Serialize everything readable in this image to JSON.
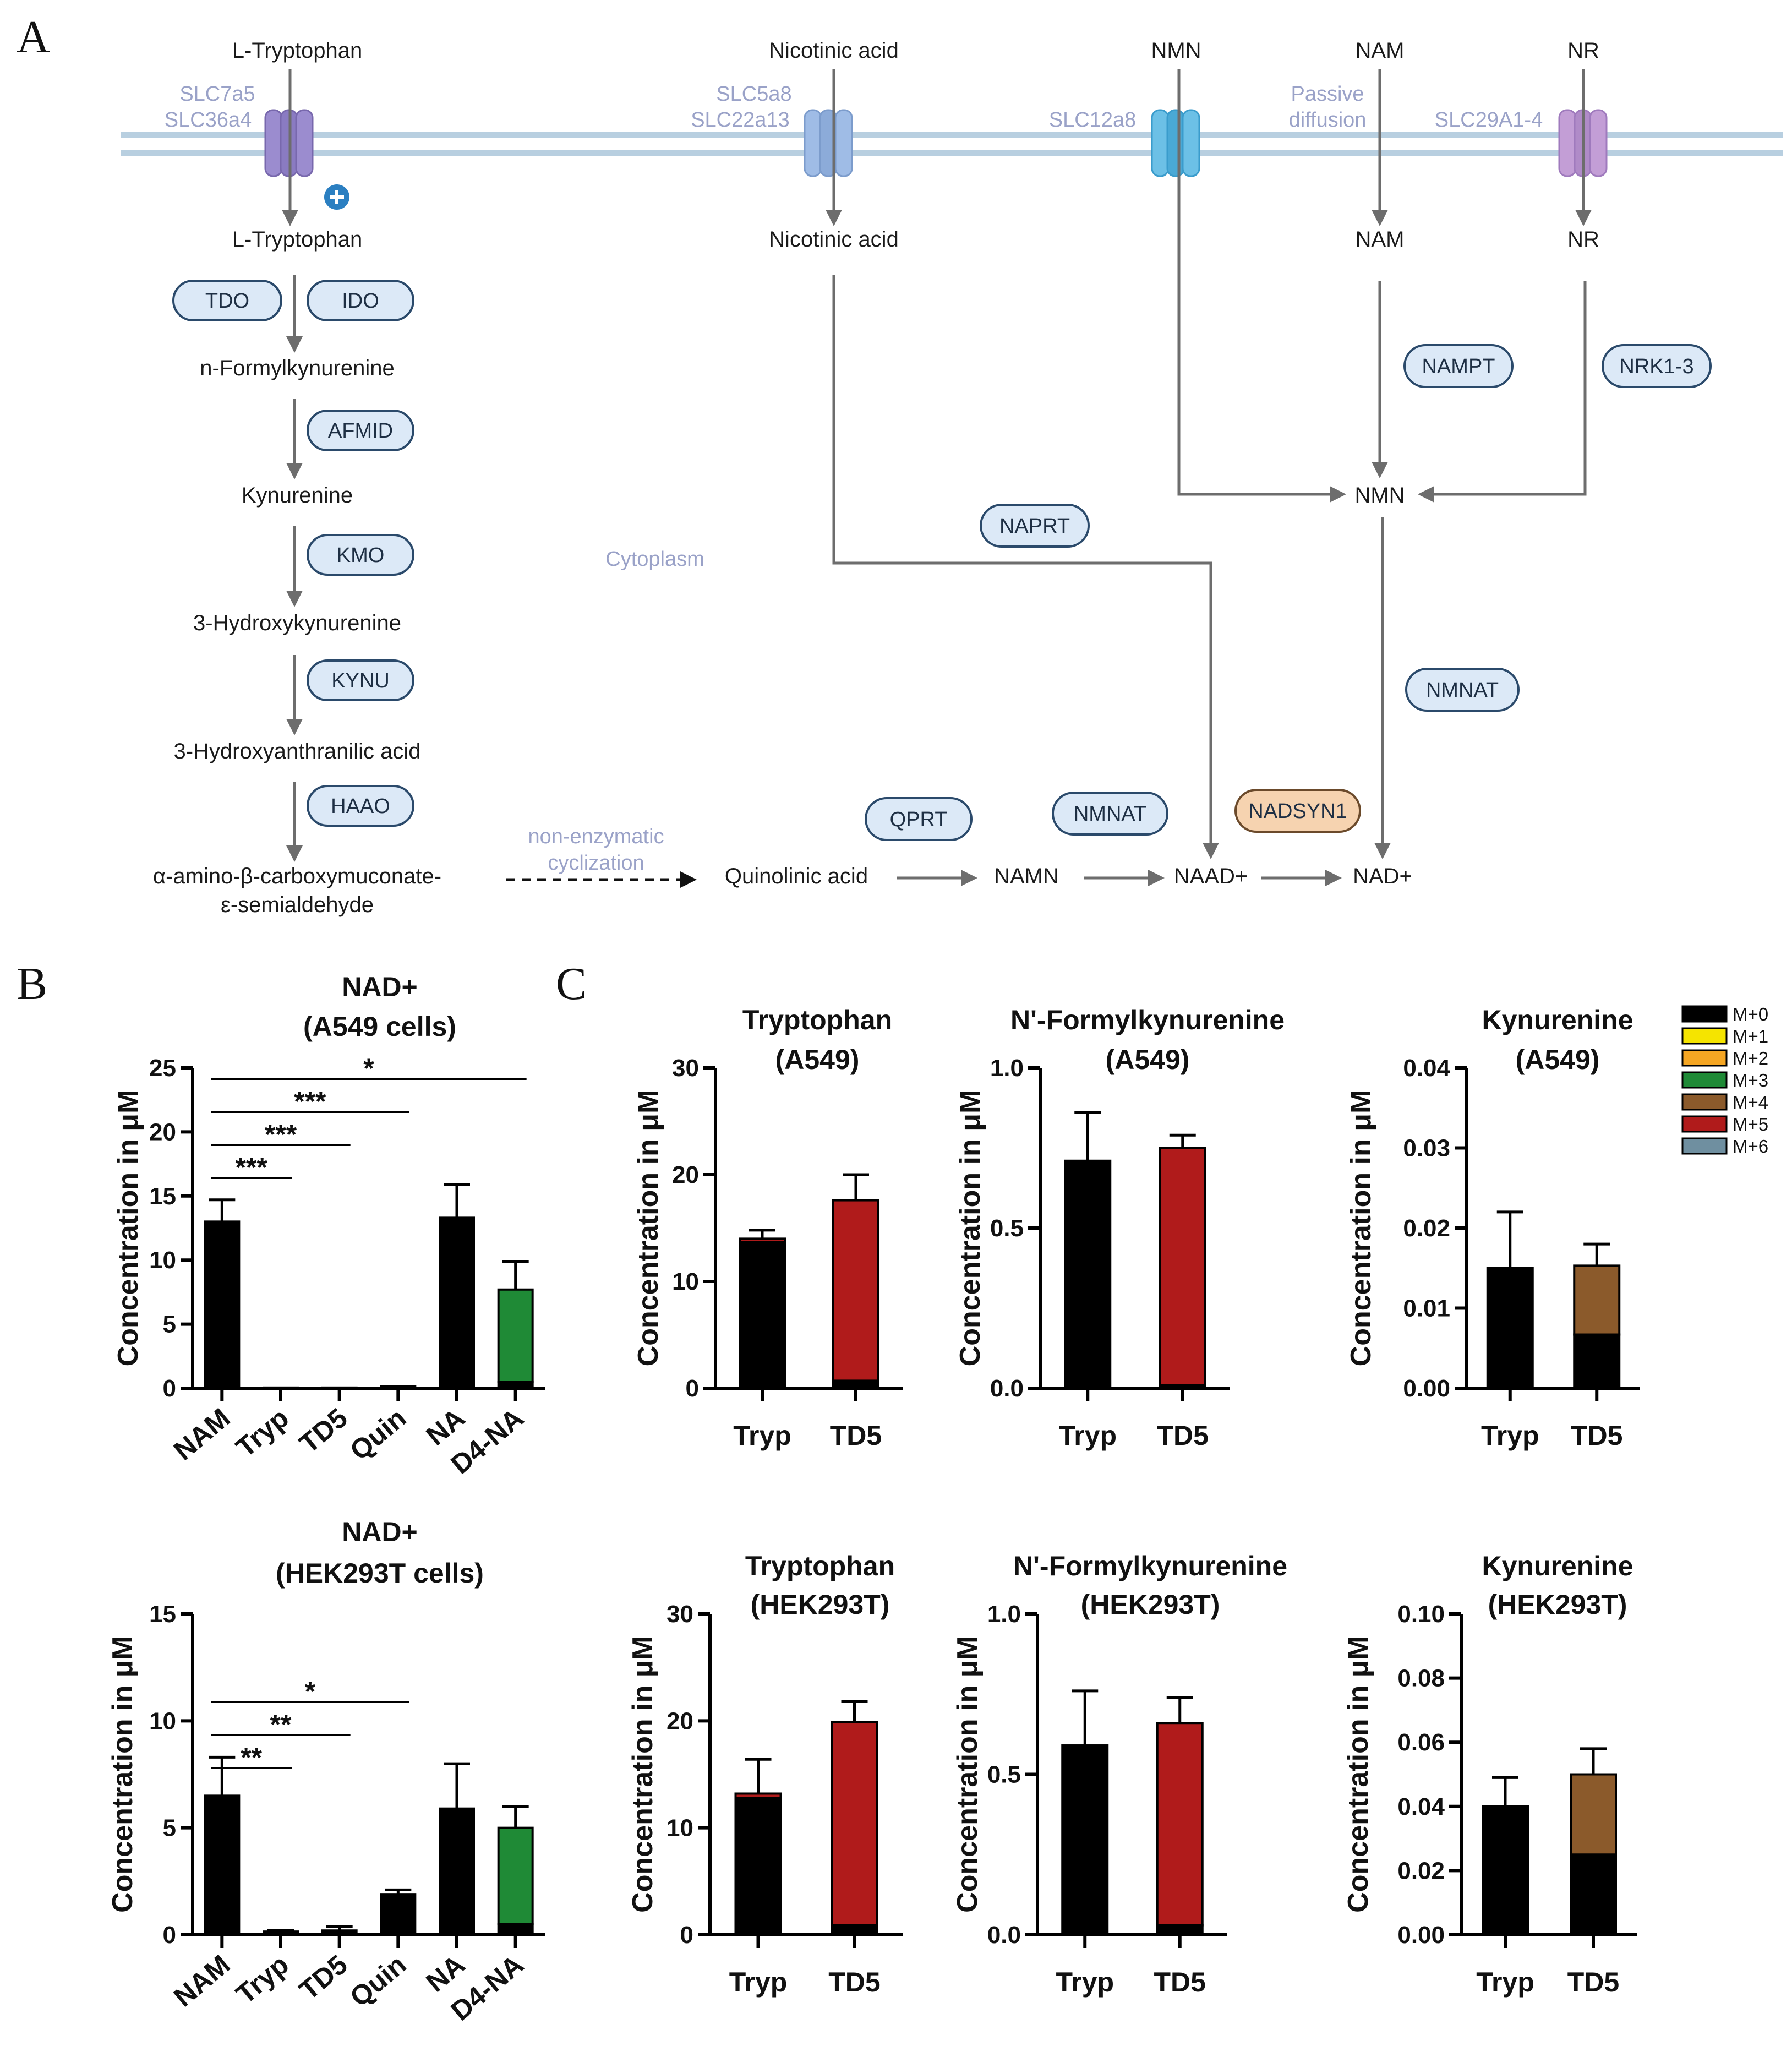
{
  "panels": {
    "a": "A",
    "b": "B",
    "c": "C"
  },
  "pathway": {
    "metabolites": {
      "trp_out": "L-Tryptophan",
      "na_out": "Nicotinic acid",
      "nmn_out": "NMN",
      "nam_out": "NAM",
      "nr_out": "NR",
      "trp_in": "L-Tryptophan",
      "na_in": "Nicotinic acid",
      "nam_in": "NAM",
      "nr_in": "NR",
      "nfk": "n-Formylkynurenine",
      "kyn": "Kynurenine",
      "hk": "3-Hydroxykynurenine",
      "haa": "3-Hydroxyanthranilic acid",
      "acms1": "α-amino-β-carboxymuconate-",
      "acms2": "ε-semialdehyde",
      "quin": "Quinolinic acid",
      "namn": "NAMN",
      "naad": "NAAD+",
      "nad": "NAD+",
      "nmn_in": "NMN"
    },
    "transporters": {
      "slc7a5": "SLC7a5",
      "slc36a4": "SLC36a4",
      "slc5a8": "SLC5a8",
      "slc22a13": "SLC22a13",
      "slc12a8": "SLC12a8",
      "passive1": "Passive",
      "passive2": "diffusion",
      "slc29": "SLC29A1-4"
    },
    "enzymes": {
      "tdo": "TDO",
      "ido": "IDO",
      "afmid": "AFMID",
      "kmo": "KMO",
      "kynu": "KYNU",
      "haao": "HAAO",
      "qprt": "QPRT",
      "nmnat1": "NMNAT",
      "nadsyn1": "NADSYN1",
      "naprt": "NAPRT",
      "nampt": "NAMPT",
      "nrk": "NRK1-3",
      "nmnat2": "NMNAT"
    },
    "cytoplasm": "Cytoplasm",
    "nonenz1": "non-enzymatic",
    "nonenz2": "cyclization",
    "plus_icon": "plus-circle-icon",
    "colors": {
      "membrane": "#b8cfe0",
      "slc7": "#9b8ccf",
      "slc5": "#9fbce6",
      "slc12": "#6cc0e6",
      "slc29": "#c39ed6"
    }
  },
  "legend": {
    "items": [
      {
        "label": "M+0",
        "color": "#000000"
      },
      {
        "label": "M+1",
        "color": "#f5e400"
      },
      {
        "label": "M+2",
        "color": "#f5a623"
      },
      {
        "label": "M+3",
        "color": "#1f8a36"
      },
      {
        "label": "M+4",
        "color": "#8b5a2b"
      },
      {
        "label": "M+5",
        "color": "#b01b1b"
      },
      {
        "label": "M+6",
        "color": "#6f8fa0"
      }
    ]
  },
  "chart_data": [
    {
      "id": "b1",
      "type": "bar",
      "title": "NAD+",
      "subtitle": "(A549 cells)",
      "ylabel": "Concentration in  μM",
      "ylim": [
        0,
        25
      ],
      "yticks": [
        0,
        5,
        10,
        15,
        20,
        25
      ],
      "tick_labels": [
        "0",
        "5",
        "10",
        "15",
        "20",
        "25"
      ],
      "categories": [
        "NAM",
        "Tryp",
        "TD5",
        "Quin",
        "NA",
        "D4-NA"
      ],
      "series": [
        {
          "name": "M+0",
          "values": [
            13.0,
            0.05,
            0.05,
            0.15,
            13.3,
            0.5
          ]
        },
        {
          "name": "M+3",
          "values": [
            0,
            0,
            0,
            0,
            0,
            7.2
          ]
        }
      ],
      "error_top": [
        14.7,
        0.05,
        0.05,
        0.15,
        15.9,
        9.9
      ],
      "significance": [
        {
          "from": "NAM",
          "to": "Tryp",
          "label": "***"
        },
        {
          "from": "NAM",
          "to": "TD5",
          "label": "***"
        },
        {
          "from": "NAM",
          "to": "Quin",
          "label": "***"
        },
        {
          "from": "NAM",
          "to": "D4-NA",
          "label": "*"
        }
      ]
    },
    {
      "id": "b2",
      "type": "bar",
      "title": "NAD+",
      "subtitle": "(HEK293T cells)",
      "ylabel": "Concentration in  μM",
      "ylim": [
        0,
        15
      ],
      "yticks": [
        0,
        5,
        10,
        15
      ],
      "tick_labels": [
        "0",
        "5",
        "10",
        "15"
      ],
      "categories": [
        "NAM",
        "Tryp",
        "TD5",
        "Quin",
        "NA",
        "D4-NA"
      ],
      "series": [
        {
          "name": "M+0",
          "values": [
            6.5,
            0.15,
            0.2,
            1.9,
            5.9,
            0.5
          ]
        },
        {
          "name": "M+3",
          "values": [
            0,
            0,
            0,
            0,
            0,
            4.5
          ]
        }
      ],
      "error_top": [
        8.3,
        0.2,
        0.4,
        2.1,
        8.0,
        6.0
      ],
      "significance": [
        {
          "from": "NAM",
          "to": "Tryp",
          "label": "**"
        },
        {
          "from": "NAM",
          "to": "TD5",
          "label": "**"
        },
        {
          "from": "NAM",
          "to": "Quin",
          "label": "*"
        }
      ]
    },
    {
      "id": "c1",
      "type": "bar",
      "title": "Tryptophan",
      "subtitle": "(A549)",
      "ylabel": "Concentration in  μM",
      "ylim": [
        0,
        30
      ],
      "yticks": [
        0,
        10,
        20,
        30
      ],
      "tick_labels": [
        "0",
        "10",
        "20",
        "30"
      ],
      "categories": [
        "Tryp",
        "TD5"
      ],
      "series": [
        {
          "name": "M+0",
          "values": [
            13.7,
            0.7
          ]
        },
        {
          "name": "M+5",
          "values": [
            0.3,
            16.9
          ]
        }
      ],
      "error_top": [
        14.8,
        20.0
      ]
    },
    {
      "id": "c2",
      "type": "bar",
      "title": "N'-Formylkynurenine",
      "subtitle": "(A549)",
      "ylabel": "Concentration in  μM",
      "ylim": [
        0,
        1.0
      ],
      "yticks": [
        0,
        0.5,
        1.0
      ],
      "tick_labels": [
        "0.0",
        "0.5",
        "1.0"
      ],
      "categories": [
        "Tryp",
        "TD5"
      ],
      "series": [
        {
          "name": "M+0",
          "values": [
            0.71,
            0.01
          ]
        },
        {
          "name": "M+5",
          "values": [
            0,
            0.74
          ]
        }
      ],
      "error_top": [
        0.86,
        0.79
      ]
    },
    {
      "id": "c3",
      "type": "bar",
      "title": "Kynurenine",
      "subtitle": "(A549)",
      "ylabel": "Concentration in  μM",
      "ylim": [
        0,
        0.04
      ],
      "yticks": [
        0,
        0.01,
        0.02,
        0.03,
        0.04
      ],
      "tick_labels": [
        "0.00",
        "0.01",
        "0.02",
        "0.03",
        "0.04"
      ],
      "categories": [
        "Tryp",
        "TD5"
      ],
      "series": [
        {
          "name": "M+0",
          "values": [
            0.015,
            0.0067
          ]
        },
        {
          "name": "M+4",
          "values": [
            0,
            0.0086
          ]
        }
      ],
      "error_top": [
        0.022,
        0.018
      ]
    },
    {
      "id": "c4",
      "type": "bar",
      "title": "Tryptophan",
      "subtitle": "(HEK293T)",
      "ylabel": "Concentration in  μM",
      "ylim": [
        0,
        30
      ],
      "yticks": [
        0,
        10,
        20,
        30
      ],
      "tick_labels": [
        "0",
        "10",
        "20",
        "30"
      ],
      "categories": [
        "Tryp",
        "TD5"
      ],
      "series": [
        {
          "name": "M+0",
          "values": [
            12.8,
            0.9
          ]
        },
        {
          "name": "M+5",
          "values": [
            0.4,
            19.0
          ]
        }
      ],
      "error_top": [
        16.4,
        21.8
      ]
    },
    {
      "id": "c5",
      "type": "bar",
      "title": "N'-Formylkynurenine",
      "subtitle": "(HEK293T)",
      "ylabel": "Concentration in  μM",
      "ylim": [
        0,
        1.0
      ],
      "yticks": [
        0,
        0.5,
        1.0
      ],
      "tick_labels": [
        "0.0",
        "0.5",
        "1.0"
      ],
      "categories": [
        "Tryp",
        "TD5"
      ],
      "series": [
        {
          "name": "M+0",
          "values": [
            0.59,
            0.03
          ]
        },
        {
          "name": "M+5",
          "values": [
            0,
            0.63
          ]
        }
      ],
      "error_top": [
        0.76,
        0.74
      ]
    },
    {
      "id": "c6",
      "type": "bar",
      "title": "Kynurenine",
      "subtitle": "(HEK293T)",
      "ylabel": "Concentration in  μM",
      "ylim": [
        0,
        0.1
      ],
      "yticks": [
        0,
        0.02,
        0.04,
        0.06,
        0.08,
        0.1
      ],
      "tick_labels": [
        "0.00",
        "0.02",
        "0.04",
        "0.06",
        "0.08",
        "0.10"
      ],
      "categories": [
        "Tryp",
        "TD5"
      ],
      "series": [
        {
          "name": "M+0",
          "values": [
            0.04,
            0.025
          ]
        },
        {
          "name": "M+4",
          "values": [
            0,
            0.025
          ]
        }
      ],
      "error_top": [
        0.049,
        0.058
      ]
    }
  ]
}
